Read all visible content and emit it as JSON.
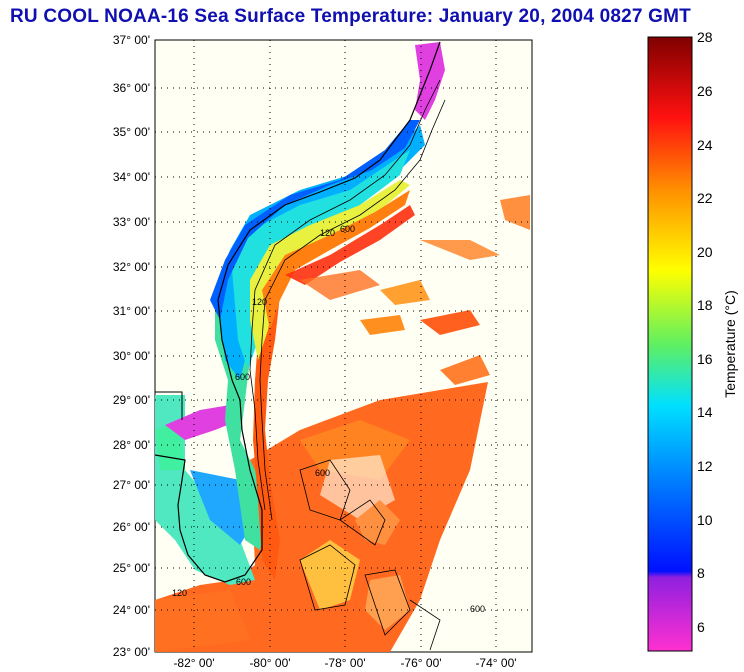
{
  "title": "RU COOL  NOAA-16  Sea Surface Temperature:  January 20, 2004 0827 GMT",
  "map": {
    "lat_labels": [
      "37° 00'",
      "36° 00'",
      "35° 00'",
      "34° 00'",
      "33° 00'",
      "32° 00'",
      "31° 00'",
      "30° 00'",
      "29° 00'",
      "28° 00'",
      "27° 00'",
      "26° 00'",
      "25° 00'",
      "24° 00'",
      "23° 00'"
    ],
    "lon_labels": [
      "-82° 00'",
      "-80° 00'",
      "-78° 00'",
      "-76° 00'",
      "-74° 00'"
    ],
    "contour_labels": [
      "120",
      "600",
      "120",
      "600",
      "120",
      "600",
      "600",
      "600"
    ]
  },
  "colorbar": {
    "label": "Temperature (°C)",
    "ticks": [
      "28",
      "26",
      "24",
      "22",
      "20",
      "18",
      "16",
      "14",
      "12",
      "10",
      "8",
      "6"
    ]
  },
  "colors": {
    "title": "#1010b0",
    "land": "#fffff4",
    "grid": "#000000"
  }
}
